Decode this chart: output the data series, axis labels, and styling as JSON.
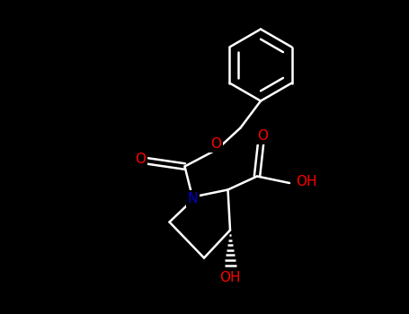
{
  "background_color": "#000000",
  "bond_color_line": "#ffffff",
  "atom_colors": {
    "O": "#ff0000",
    "N": "#0000cc"
  },
  "figsize": [
    4.55,
    3.5
  ],
  "dpi": 100,
  "line_width": 1.8,
  "font_size": 11
}
